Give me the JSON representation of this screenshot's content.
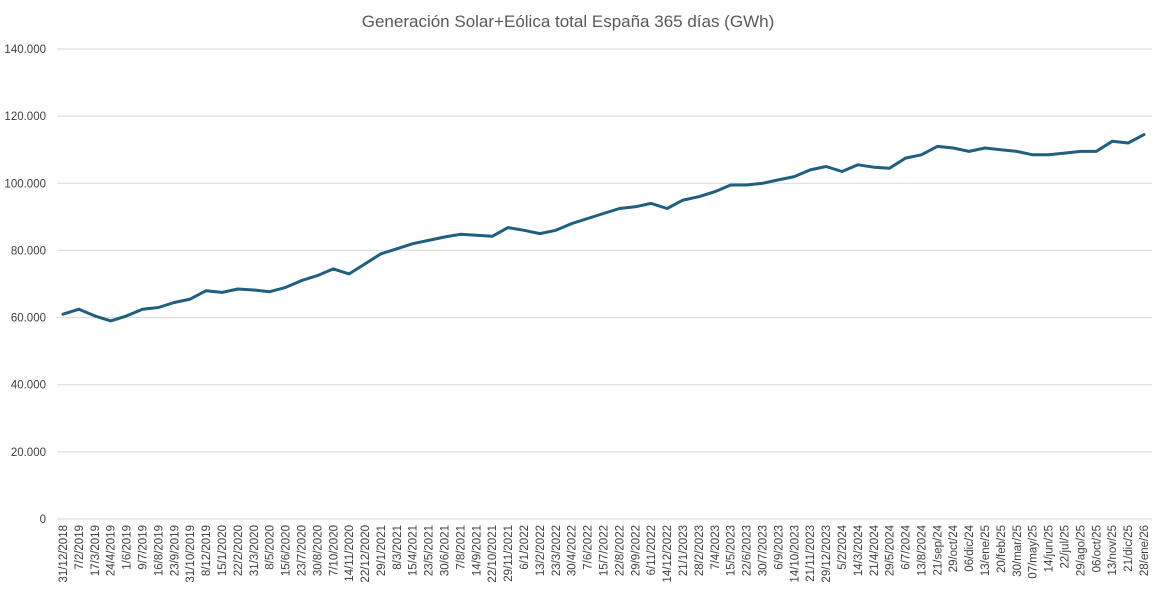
{
  "chart_data": {
    "type": "line",
    "title": "Generación Solar+Eólica total España 365 días (GWh)",
    "xlabel": "",
    "ylabel": "",
    "ylim": [
      0,
      140000
    ],
    "yticks": [
      0,
      20000,
      40000,
      60000,
      80000,
      100000,
      120000,
      140000
    ],
    "ytick_labels": [
      "0",
      "20.000",
      "40.000",
      "60.000",
      "80.000",
      "100.000",
      "120.000",
      "140.000"
    ],
    "grid": true,
    "legend": "none",
    "line_color": "#1f5f7f",
    "categories": [
      "31/12/2018",
      "7/2/2019",
      "17/3/2019",
      "24/4/2019",
      "1/6/2019",
      "9/7/2019",
      "16/8/2019",
      "23/9/2019",
      "31/10/2019",
      "8/12/2019",
      "15/1/2020",
      "22/2/2020",
      "31/3/2020",
      "8/5/2020",
      "15/6/2020",
      "23/7/2020",
      "30/8/2020",
      "7/10/2020",
      "14/11/2020",
      "22/12/2020",
      "29/1/2021",
      "8/3/2021",
      "15/4/2021",
      "23/5/2021",
      "30/6/2021",
      "7/8/2021",
      "14/9/2021",
      "22/10/2021",
      "29/11/2021",
      "6/1/2022",
      "13/2/2022",
      "23/3/2022",
      "30/4/2022",
      "7/6/2022",
      "15/7/2022",
      "22/8/2022",
      "29/9/2022",
      "6/11/2022",
      "14/12/2022",
      "21/1/2023",
      "28/2/2023",
      "7/4/2023",
      "15/5/2023",
      "22/6/2023",
      "30/7/2023",
      "6/9/2023",
      "14/10/2023",
      "21/11/2023",
      "29/12/2023",
      "5/2/2024",
      "14/3/2024",
      "21/4/2024",
      "29/5/2024",
      "6/7/2024",
      "13/8/2024",
      "21/sep/24",
      "29/oct/24",
      "06/dic/24",
      "13/ene/25",
      "20/feb/25",
      "30/mar/25",
      "07/may/25",
      "14/jun/25",
      "22/jul/25",
      "29/ago/25",
      "06/oct/25",
      "13/nov/25",
      "21/dic/25",
      "28/ene/26"
    ],
    "values": [
      61000,
      62500,
      60500,
      59000,
      60500,
      62500,
      63000,
      64500,
      65500,
      68000,
      67500,
      68500,
      68200,
      67700,
      69000,
      71000,
      72500,
      74500,
      73000,
      76000,
      79000,
      80500,
      82000,
      83000,
      84000,
      84800,
      84500,
      84200,
      86800,
      86000,
      85000,
      86000,
      88000,
      89500,
      91000,
      92500,
      93000,
      94000,
      92500,
      95000,
      96000,
      97500,
      99500,
      99500,
      100000,
      101000,
      102000,
      104000,
      105000,
      103500,
      105500,
      104800,
      104500,
      107500,
      108500,
      111000,
      110500,
      109500,
      110500,
      110000,
      109500,
      108500,
      108500,
      109000,
      109500,
      109500,
      112500,
      112000,
      114500
    ]
  }
}
